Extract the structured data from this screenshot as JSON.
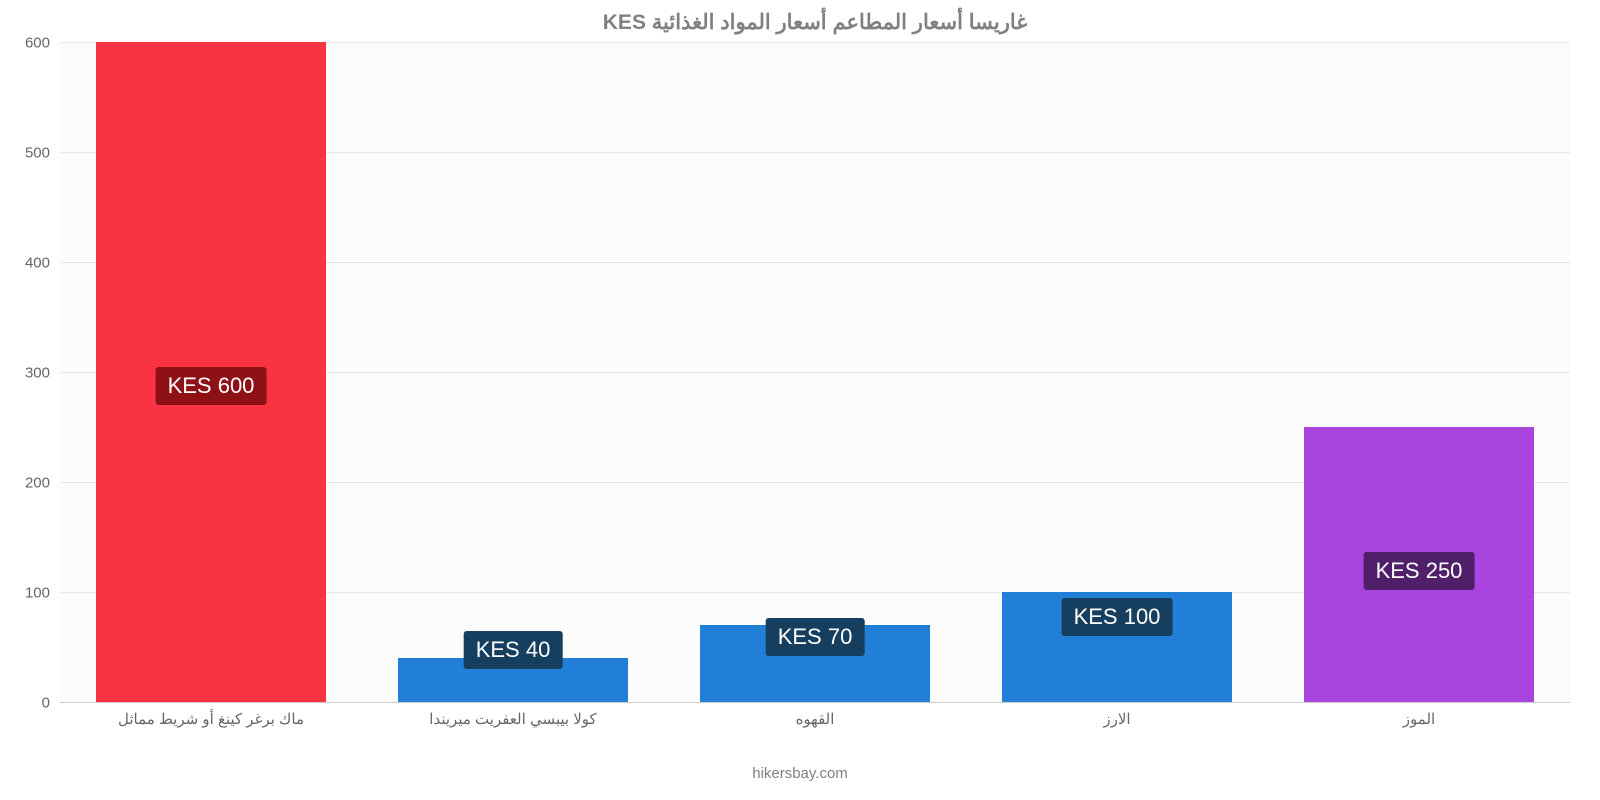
{
  "chart": {
    "type": "bar",
    "title": "غاريسا أسعار المطاعم أسعار المواد الغذائية KES",
    "title_color": "#808080",
    "title_fontsize": 21,
    "background_color": "#fcfcfc",
    "grid_color": "#e6e6e6",
    "baseline_color": "#cccccc",
    "axis_label_color": "#666666",
    "axis_label_fontsize": 15,
    "ylim": [
      0,
      600
    ],
    "yticks": [
      0,
      100,
      200,
      300,
      400,
      500,
      600
    ],
    "bar_width_pct": 76,
    "bars": [
      {
        "category": "ماك برغر كينغ أو شريط مماثل",
        "value": 600,
        "color": "#fa3343",
        "label": "KES 600",
        "label_bg": "#8e1116",
        "label_bottom_pct": 45
      },
      {
        "category": "كولا بيبسي العفريت ميريندا",
        "value": 40,
        "color": "#217fd7",
        "label": "KES 40",
        "label_bg": "#163e5e",
        "label_bottom_pct": 5
      },
      {
        "category": "القهوه",
        "value": 70,
        "color": "#217fd7",
        "label": "KES 70",
        "label_bg": "#163e5e",
        "label_bottom_pct": 7
      },
      {
        "category": "الارز",
        "value": 100,
        "color": "#217fd7",
        "label": "KES 100",
        "label_bg": "#163e5e",
        "label_bottom_pct": 10
      },
      {
        "category": "الموز",
        "value": 250,
        "color": "#a945de",
        "label": "KES 250",
        "label_bg": "#4f1f6a",
        "label_bottom_pct": 17
      }
    ],
    "footer": "hikersbay.com",
    "footer_color": "#808080",
    "bar_label_fontsize": 22,
    "bar_label_color": "#ffffff"
  }
}
